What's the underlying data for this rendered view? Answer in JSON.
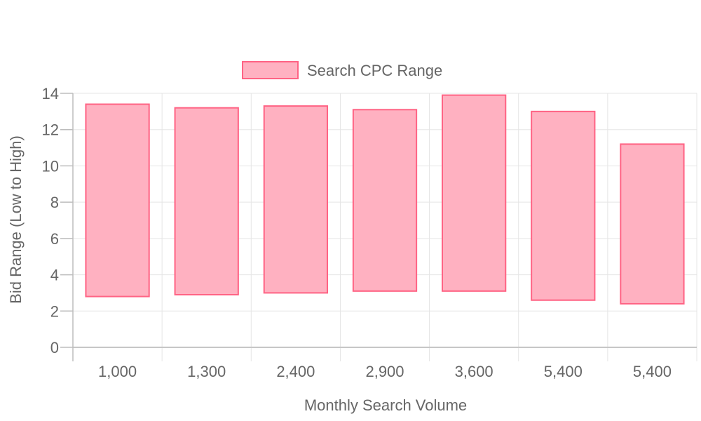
{
  "chart_data": {
    "type": "bar",
    "categories": [
      "1,000",
      "1,300",
      "2,400",
      "2,900",
      "3,600",
      "5,400",
      "5,400"
    ],
    "series": [
      {
        "name": "Search CPC Range",
        "ranges": [
          [
            2.8,
            13.4
          ],
          [
            2.9,
            13.2
          ],
          [
            3.0,
            13.3
          ],
          [
            3.1,
            13.1
          ],
          [
            3.1,
            13.9
          ],
          [
            2.6,
            13.0
          ],
          [
            2.4,
            11.2
          ]
        ]
      }
    ],
    "xlabel": "Monthly Search Volume",
    "ylabel": "Bid Range (Low to High)",
    "ylim": [
      0,
      14
    ],
    "yticks": [
      "0",
      "2",
      "4",
      "6",
      "8",
      "10",
      "12",
      "14"
    ],
    "grid": true,
    "legend_position": "top-center",
    "colors": {
      "bar_fill": "#ffb1c1",
      "bar_border": "#ff6384",
      "grid": "#e5e5e5",
      "axis": "#bdbdbd",
      "text": "#666666"
    }
  }
}
